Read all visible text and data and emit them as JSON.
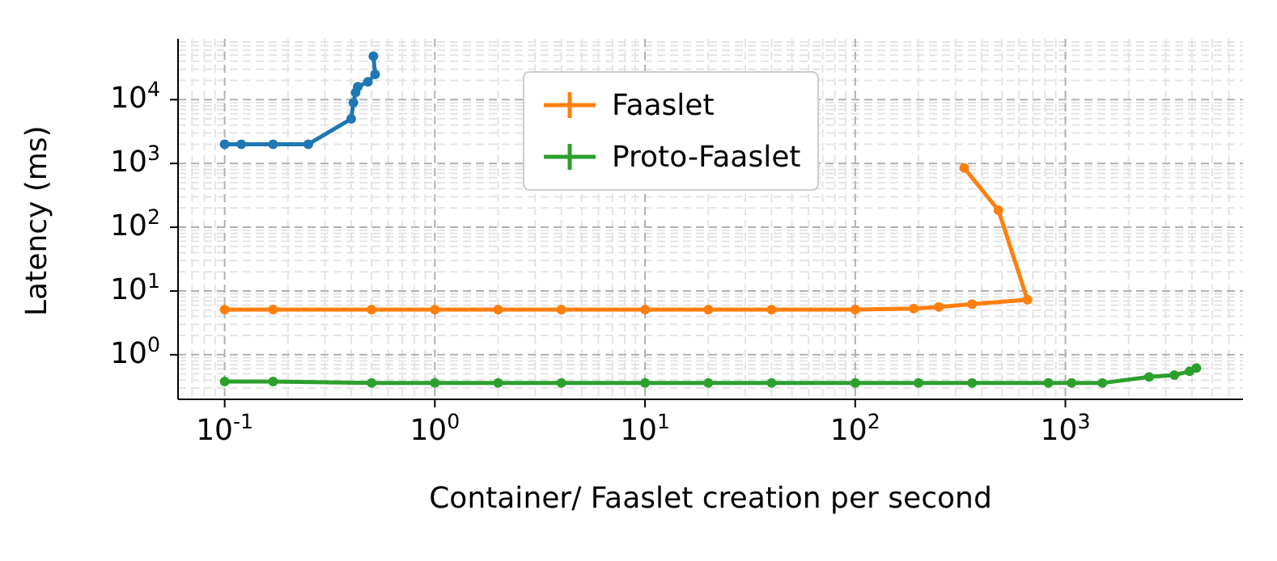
{
  "chart_data": {
    "type": "line",
    "xlabel": "Container/ Faaslet creation per second",
    "ylabel": "Latency (ms)",
    "log": "xy",
    "grid": true,
    "legend": "top",
    "marker": "circle",
    "line_style": "solid",
    "xlim": [
      0.06,
      7000
    ],
    "xticks": [
      {
        "value": 0.1,
        "label": "10$^{-1}$"
      },
      {
        "value": 1,
        "label": "10$^{0}$"
      },
      {
        "value": 10,
        "label": "10$^{1}$"
      },
      {
        "value": 100,
        "label": "10$^{2}$"
      },
      {
        "value": 1000,
        "label": "10$^{3}$"
      }
    ],
    "ylim": [
      0.2,
      90000
    ],
    "yticks": [
      {
        "value": 1,
        "label": "10$^{0}$"
      },
      {
        "value": 10,
        "label": "10$^{1}$"
      },
      {
        "value": 100,
        "label": "10$^{2}$"
      },
      {
        "value": 1000,
        "label": "10$^{3}$"
      },
      {
        "value": 10000,
        "label": "10$^{4}$"
      }
    ],
    "series": [
      {
        "color": "#1f77b4",
        "x": [
          0.1,
          0.12,
          0.17,
          0.25,
          0.4,
          0.41,
          0.42,
          0.43,
          0.48,
          0.52,
          0.51
        ],
        "values": [
          2000,
          2000,
          2000,
          2000,
          5000,
          9000,
          13000,
          16000,
          19000,
          25000,
          48000
        ]
      },
      {
        "name": "Faaslet",
        "color": "#ff7f0e",
        "x": [
          0.1,
          0.17,
          0.5,
          1,
          2,
          4,
          10,
          20,
          40,
          100,
          190,
          250,
          360,
          660,
          480,
          330
        ],
        "values": [
          5.1,
          5.1,
          5.1,
          5.1,
          5.1,
          5.1,
          5.1,
          5.1,
          5.1,
          5.1,
          5.3,
          5.6,
          6.2,
          7.3,
          185,
          850
        ]
      },
      {
        "name": "Proto-Faaslet",
        "color": "#2ca02c",
        "x": [
          0.1,
          0.17,
          0.5,
          1,
          2,
          4,
          10,
          20,
          40,
          100,
          200,
          360,
          830,
          1070,
          1500,
          2500,
          3300,
          3900,
          4200
        ],
        "values": [
          0.38,
          0.38,
          0.36,
          0.36,
          0.36,
          0.36,
          0.36,
          0.36,
          0.36,
          0.36,
          0.36,
          0.36,
          0.36,
          0.36,
          0.36,
          0.45,
          0.48,
          0.55,
          0.62
        ]
      }
    ]
  }
}
